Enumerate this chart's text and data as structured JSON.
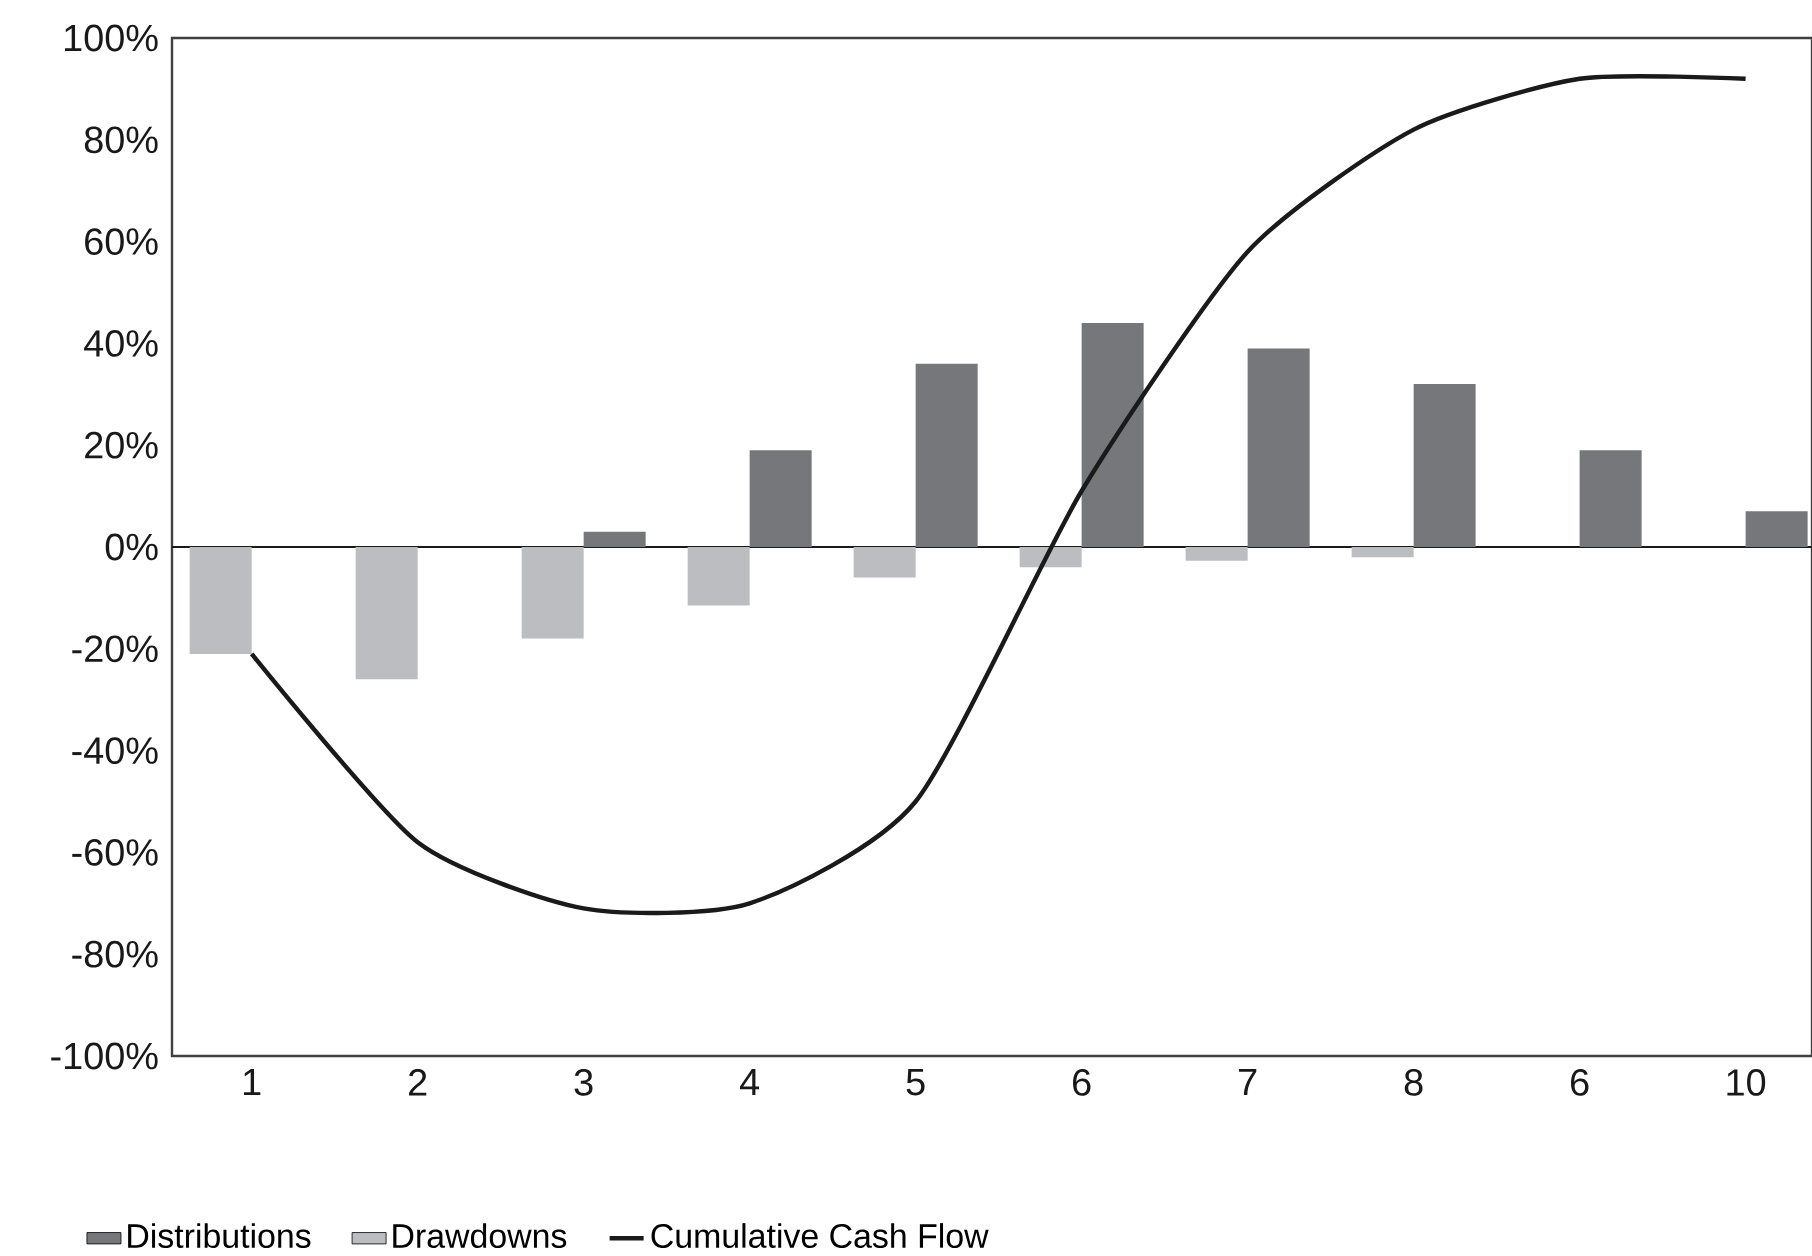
{
  "chart_data": {
    "type": "bar",
    "categories": [
      "1",
      "2",
      "3",
      "4",
      "5",
      "6",
      "7",
      "8",
      "6",
      "10"
    ],
    "series": [
      {
        "name": "Distributions",
        "color": "#76777b",
        "values": [
          null,
          null,
          3,
          19,
          36,
          44,
          39,
          32,
          19,
          7
        ]
      },
      {
        "name": "Drawdowns",
        "color": "#bcbdc0",
        "values": [
          -21,
          -26,
          -18,
          -11.5,
          -6,
          -4,
          -2.7,
          -2,
          null,
          null
        ]
      },
      {
        "name": "Cumulative Cash Flow",
        "type": "line",
        "color": "#1a1a1a",
        "values": [
          -21,
          -58,
          -71,
          -70,
          -50,
          11,
          58,
          82,
          92,
          92
        ]
      }
    ],
    "ylim": [
      -100,
      100
    ],
    "yticks": [
      {
        "value": -100,
        "label": "-100%"
      },
      {
        "value": -80,
        "label": "-80%"
      },
      {
        "value": -60,
        "label": "-60%"
      },
      {
        "value": -40,
        "label": "-40%"
      },
      {
        "value": -20,
        "label": "-20%"
      },
      {
        "value": 0,
        "label": "0%"
      },
      {
        "value": 20,
        "label": "20%"
      },
      {
        "value": 40,
        "label": "40%"
      },
      {
        "value": 60,
        "label": "60%"
      },
      {
        "value": 80,
        "label": "80%"
      },
      {
        "value": 100,
        "label": "100%"
      }
    ],
    "ref_lines": [
      {
        "axis": "y",
        "value": 0,
        "color": "#1a1a1a"
      }
    ],
    "legend": "bottom"
  }
}
